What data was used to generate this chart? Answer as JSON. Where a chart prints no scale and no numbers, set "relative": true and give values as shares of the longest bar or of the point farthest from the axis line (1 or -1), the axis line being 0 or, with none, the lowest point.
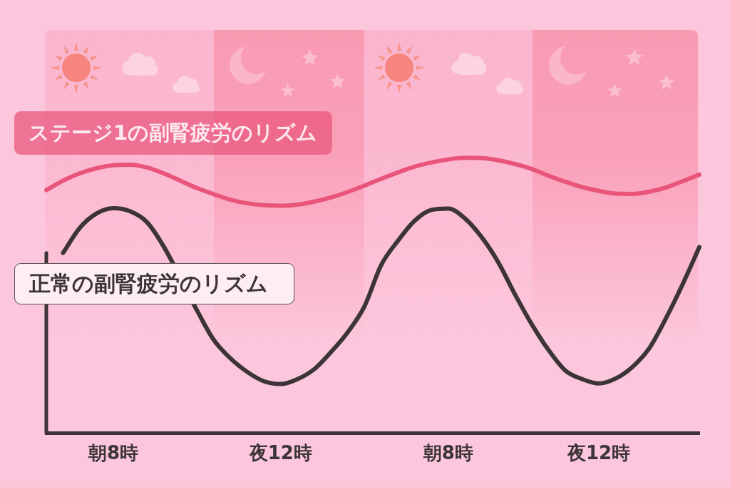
{
  "chart_data": {
    "type": "line",
    "relative": true,
    "marker": "none",
    "grid": false,
    "categories": [
      null,
      null,
      null,
      null,
      "朝8時",
      null,
      null,
      null,
      null,
      null,
      null,
      null,
      null,
      null,
      "夜12時",
      null,
      null,
      null,
      null,
      null,
      null,
      null,
      null,
      null,
      "朝8時",
      null,
      null,
      null,
      null,
      null,
      null,
      null,
      null,
      "夜12時",
      null,
      null,
      null,
      null,
      null,
      null
    ],
    "series": [
      {
        "name": "ステージ1の副腎疲労のリズム",
        "color": "#e9557a",
        "values": [
          0.883,
          0.917,
          0.944,
          0.962,
          0.973,
          0.975,
          0.965,
          0.944,
          0.917,
          0.89,
          0.868,
          0.848,
          0.835,
          0.828,
          0.826,
          0.83,
          0.841,
          0.856,
          0.876,
          0.899,
          0.924,
          0.947,
          0.968,
          0.983,
          0.994,
          1.0,
          0.999,
          0.991,
          0.977,
          0.959,
          0.935,
          0.913,
          0.894,
          0.88,
          0.87,
          0.869,
          0.877,
          0.892,
          0.915,
          0.939
        ]
      },
      {
        "name": "正常の副腎疲労のリズム",
        "color": "#3d3438",
        "values": [
          null,
          0.655,
          0.746,
          0.798,
          0.817,
          0.806,
          0.767,
          0.679,
          null,
          0.446,
          0.339,
          0.272,
          0.223,
          0.189,
          0.179,
          0.197,
          0.233,
          0.295,
          0.367,
          0.461,
          0.611,
          0.699,
          0.772,
          0.811,
          0.816,
          0.78,
          0.712,
          0.62,
          0.503,
          0.395,
          0.302,
          0.228,
          0.197,
          0.181,
          0.199,
          0.241,
          0.308,
          0.417,
          0.541,
          0.676
        ]
      }
    ]
  }
}
